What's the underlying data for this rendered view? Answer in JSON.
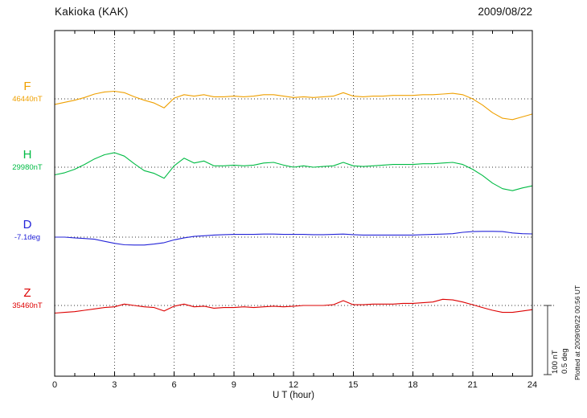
{
  "header": {
    "title": "Kakioka (KAK)",
    "date": "2009/08/22"
  },
  "x_axis": {
    "label": "U T (hour)",
    "ticks": [
      0,
      3,
      6,
      9,
      12,
      15,
      18,
      21,
      24
    ],
    "minor_tick_every_hours": 1
  },
  "channels": [
    {
      "label": "F",
      "value": "46440nT"
    },
    {
      "label": "H",
      "value": "29980nT"
    },
    {
      "label": "D",
      "value": "-7.1deg"
    },
    {
      "label": "Z",
      "value": "35460nT"
    }
  ],
  "scale_bar": {
    "label_nt": "100 nT",
    "label_deg": "0.5 deg"
  },
  "footer": {
    "plotted_at": "Plotted at 2009/09/22 00:56 UT"
  },
  "chart_data": {
    "type": "line",
    "title": "Kakioka (KAK) magnetogram, 2009/08/22",
    "xlabel": "U T (hour)",
    "x_range": [
      0,
      24
    ],
    "x_tick_labels": [
      0,
      3,
      6,
      9,
      12,
      15,
      18,
      21,
      24
    ],
    "x_step_hours": 0.5,
    "grid": "dotted vertical lines every 3 hours; dotted horizontal baseline per channel",
    "legend_position": "left",
    "scale_division": {
      "nT": 100,
      "deg": 0.5
    },
    "series": [
      {
        "name": "F",
        "unit": "nT",
        "color": "#efa000",
        "baseline_value": 46440,
        "offsets_from_baseline": [
          -8,
          -5,
          -2,
          2,
          7,
          10,
          11,
          9,
          3,
          -2,
          -6,
          -13,
          1,
          6,
          4,
          6,
          3,
          3,
          4,
          3,
          4,
          6,
          6,
          4,
          2,
          3,
          2,
          3,
          4,
          9,
          4,
          3,
          4,
          4,
          5,
          5,
          5,
          6,
          6,
          7,
          8,
          6,
          0,
          -9,
          -20,
          -28,
          -30,
          -26,
          -22
        ]
      },
      {
        "name": "H",
        "unit": "nT",
        "color": "#00bb44",
        "baseline_value": 29980,
        "offsets_from_baseline": [
          -11,
          -8,
          -3,
          4,
          12,
          18,
          21,
          16,
          5,
          -5,
          -9,
          -16,
          2,
          13,
          6,
          9,
          2,
          2,
          3,
          2,
          3,
          6,
          7,
          3,
          0,
          2,
          0,
          1,
          2,
          7,
          2,
          1,
          2,
          3,
          4,
          4,
          4,
          5,
          5,
          6,
          7,
          4,
          -3,
          -12,
          -23,
          -31,
          -34,
          -30,
          -27
        ]
      },
      {
        "name": "D",
        "unit": "deg",
        "color": "#2424d8",
        "baseline_value": -7.1,
        "offsets_from_baseline": [
          0,
          0,
          -0.005,
          -0.01,
          -0.015,
          -0.03,
          -0.045,
          -0.055,
          -0.057,
          -0.057,
          -0.05,
          -0.04,
          -0.02,
          -0.005,
          0.005,
          0.01,
          0.015,
          0.018,
          0.02,
          0.02,
          0.02,
          0.022,
          0.022,
          0.02,
          0.02,
          0.02,
          0.018,
          0.018,
          0.02,
          0.022,
          0.018,
          0.015,
          0.015,
          0.015,
          0.015,
          0.015,
          0.015,
          0.018,
          0.02,
          0.022,
          0.025,
          0.035,
          0.04,
          0.042,
          0.042,
          0.04,
          0.03,
          0.025,
          0.023
        ]
      },
      {
        "name": "Z",
        "unit": "nT",
        "color": "#dd0000",
        "baseline_value": 35460,
        "offsets_from_baseline": [
          -11,
          -10,
          -9,
          -7,
          -5,
          -3,
          -2,
          2,
          0,
          -2,
          -3,
          -8,
          -1,
          2,
          -2,
          -1,
          -4,
          -3,
          -3,
          -2,
          -3,
          -2,
          -1,
          -2,
          -1,
          0,
          0,
          0,
          1,
          7,
          1,
          1,
          2,
          2,
          2,
          3,
          3,
          4,
          5,
          9,
          8,
          5,
          1,
          -3,
          -7,
          -10,
          -10,
          -8,
          -6
        ]
      }
    ]
  }
}
